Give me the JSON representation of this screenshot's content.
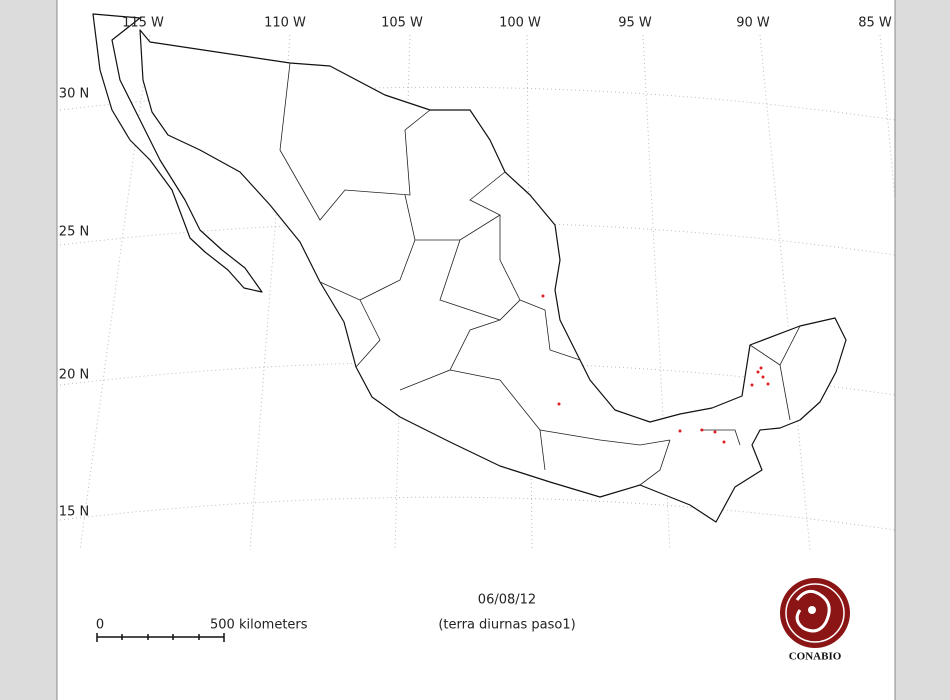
{
  "map": {
    "longitude_labels": [
      "115 W",
      "110 W",
      "105 W",
      "100 W",
      "95 W",
      "90 W",
      "85 W"
    ],
    "latitude_labels": [
      "30 N",
      "25 N",
      "20 N",
      "15 N"
    ],
    "date": "06/08/12",
    "subtitle": "(terra diurnas paso1)",
    "scale": {
      "start": "0",
      "end": "500 kilometers"
    },
    "logo": "CONABIO"
  }
}
